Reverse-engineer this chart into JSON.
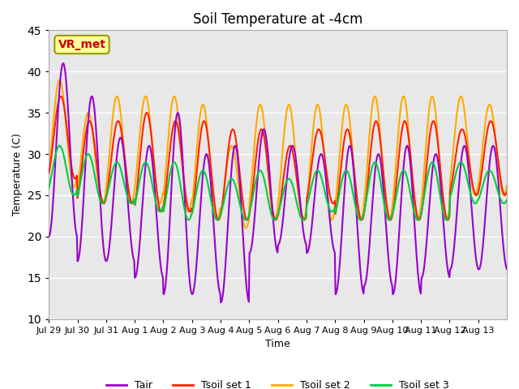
{
  "title": "Soil Temperature at -4cm",
  "xlabel": "Time",
  "ylabel": "Temperature (C)",
  "ylim": [
    10,
    45
  ],
  "yticks": [
    10,
    15,
    20,
    25,
    30,
    35,
    40,
    45
  ],
  "background_color": "#ffffff",
  "plot_bg_color": "#e8e8e8",
  "grid_color": "#ffffff",
  "series": {
    "Tair": {
      "color": "#9900cc",
      "lw": 1.5
    },
    "Tsoil set 1": {
      "color": "#ff2200",
      "lw": 1.5
    },
    "Tsoil set 2": {
      "color": "#ffaa00",
      "lw": 1.5
    },
    "Tsoil set 3": {
      "color": "#00cc44",
      "lw": 1.5
    }
  },
  "x_tick_labels": [
    "Jul 29",
    "Jul 30",
    "Jul 31",
    "Aug 1",
    "Aug 2",
    "Aug 3",
    "Aug 4",
    "Aug 5",
    "Aug 6",
    "Aug 7",
    "Aug 8",
    "Aug 9",
    "Aug 10",
    "Aug 11",
    "Aug 12",
    "Aug 13"
  ],
  "annotation_text": "VR_met",
  "annotation_color": "#cc0000",
  "annotation_bg": "#ffff99",
  "annotation_border": "#999900",
  "tair_peaks": [
    41,
    37,
    32,
    31,
    35,
    30,
    31,
    33,
    31,
    30,
    31,
    30,
    31,
    30,
    31,
    31
  ],
  "tair_troughs": [
    20,
    17,
    17,
    15,
    13,
    13,
    12,
    18,
    19,
    18,
    13,
    14,
    13,
    15,
    16,
    16
  ],
  "ts1_peaks": [
    37,
    34,
    34,
    35,
    34,
    34,
    33,
    33,
    31,
    33,
    33,
    34,
    34,
    34,
    33,
    34
  ],
  "ts1_troughs": [
    27,
    24,
    24,
    23,
    23,
    22,
    22,
    22,
    22,
    24,
    22,
    22,
    22,
    22,
    25,
    25
  ],
  "ts2_peaks": [
    39,
    35,
    37,
    37,
    37,
    36,
    31,
    36,
    36,
    36,
    36,
    37,
    37,
    37,
    37,
    36
  ],
  "ts2_troughs": [
    26,
    24,
    24,
    24,
    23,
    22,
    21,
    22,
    22,
    22,
    22,
    22,
    22,
    22,
    25,
    25
  ],
  "ts3_peaks": [
    31,
    30,
    29,
    29,
    29,
    28,
    27,
    28,
    27,
    28,
    28,
    29,
    28,
    29,
    29,
    28
  ],
  "ts3_troughs": [
    25,
    24,
    24,
    23,
    22,
    22,
    22,
    22,
    22,
    23,
    22,
    22,
    22,
    22,
    24,
    24
  ],
  "n_days": 16,
  "pts_per_day": 48
}
